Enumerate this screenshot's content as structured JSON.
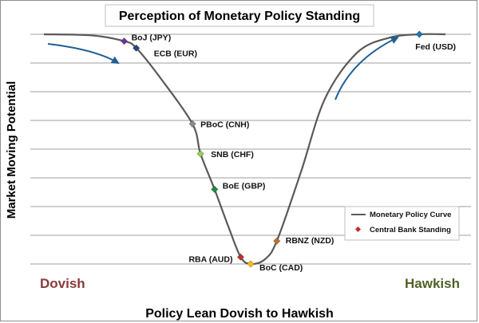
{
  "colors": {
    "curve": "#595959",
    "arrow": "#1f5f95",
    "dovish": "#8b3a3a",
    "hawkish": "#4f6228",
    "grid": "#7f7f7f",
    "legend_marker": "#c0302b"
  },
  "chart_data": {
    "type": "line",
    "title": "Perception of Monetary Policy Standing",
    "xlabel": "Policy Lean Dovish to Hawkish",
    "ylabel": "Market Moving Potential",
    "end_labels": {
      "left": "Dovish",
      "right": "Hawkish"
    },
    "grid": "horizontal",
    "legend_position": "right",
    "legend": [
      {
        "name": "Monetary Policy Curve",
        "kind": "line"
      },
      {
        "name": "Central Bank Standing",
        "kind": "marker"
      }
    ],
    "series": [
      {
        "name": "Central Bank Standing",
        "points": [
          {
            "label": "BoJ (JPY)",
            "x": 0.2,
            "y": 9.7,
            "color": "#7030a0"
          },
          {
            "label": "ECB (EUR)",
            "x": 0.23,
            "y": 9.4,
            "color": "#1f497d"
          },
          {
            "label": "PBoC (CNH)",
            "x": 0.37,
            "y": 6.1,
            "color": "#8a8a8a"
          },
          {
            "label": "SNB (CHF)",
            "x": 0.39,
            "y": 4.8,
            "color": "#92d050"
          },
          {
            "label": "BoE (GBP)",
            "x": 0.425,
            "y": 3.25,
            "color": "#1e8c3a"
          },
          {
            "label": "RBA (AUD)",
            "x": 0.49,
            "y": 0.3,
            "color": "#c0302b"
          },
          {
            "label": "BoC (CAD)",
            "x": 0.515,
            "y": 0.0,
            "color": "#ffc000"
          },
          {
            "label": "RBNZ (NZD)",
            "x": 0.58,
            "y": 1.0,
            "color": "#c0702b"
          },
          {
            "label": "Fed (USD)",
            "x": 0.935,
            "y": 10.0,
            "color": "#1f77b4"
          }
        ]
      }
    ]
  }
}
